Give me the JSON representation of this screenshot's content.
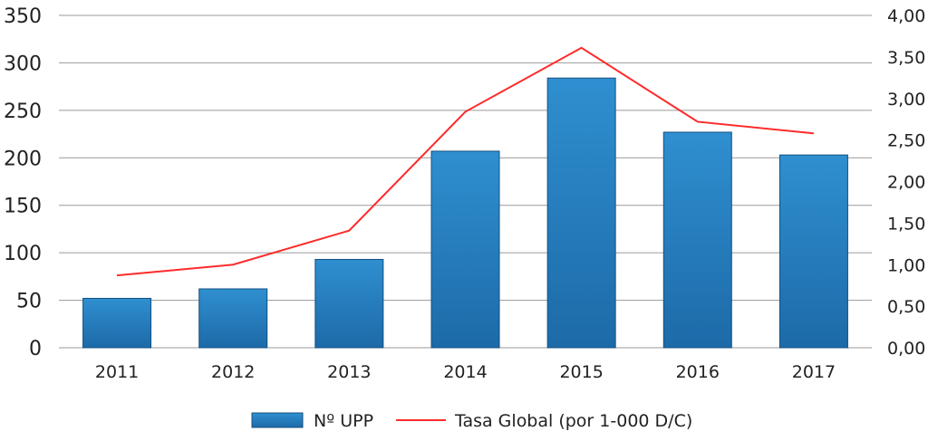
{
  "chart_data": {
    "type": "bar",
    "categories": [
      "2011",
      "2012",
      "2013",
      "2014",
      "2015",
      "2016",
      "2017"
    ],
    "series": [
      {
        "name": "Nº UPP",
        "type": "bar",
        "axis": "left",
        "values": [
          52,
          62,
          93,
          207,
          284,
          227,
          203
        ]
      },
      {
        "name": "Tasa Global (por 1-000 D/C)",
        "type": "line",
        "axis": "right",
        "values": [
          0.87,
          1.0,
          1.41,
          2.84,
          3.61,
          2.72,
          2.58
        ]
      }
    ],
    "y_left": {
      "range": [
        0,
        350
      ],
      "ticks": [
        "0",
        "50",
        "100",
        "150",
        "200",
        "250",
        "300",
        "350"
      ]
    },
    "y_right": {
      "range": [
        0,
        4
      ],
      "ticks": [
        "0,00",
        "0,50",
        "1,00",
        "1,50",
        "2,00",
        "2,50",
        "3,00",
        "3,50",
        "4,00"
      ]
    },
    "grid": true,
    "legend_position": "bottom",
    "colors": {
      "bar": "#2f8fd0",
      "bar_dark": "#1d6aa8",
      "bar_border": "#14507f",
      "line": "#ff2a2a",
      "grid": "#9a9a9a"
    }
  }
}
